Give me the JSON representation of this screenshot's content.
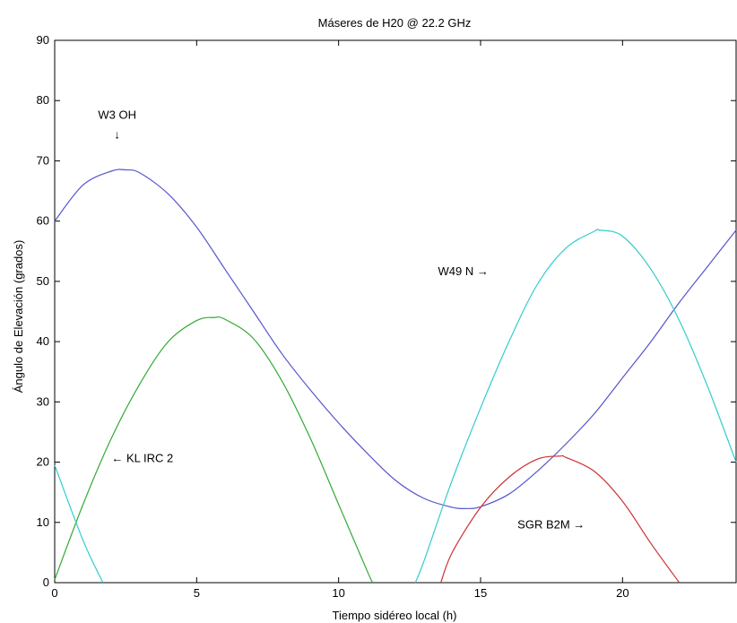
{
  "chart_data": {
    "type": "line",
    "title": "Máseres de H20 @ 22.2 GHz",
    "xlabel": "Tiempo sidéreo local (h)",
    "ylabel": "Ángulo de Elevación (grados)",
    "xlim": [
      0,
      24
    ],
    "ylim": [
      0,
      90
    ],
    "xticks": [
      0,
      5,
      10,
      15,
      20
    ],
    "yticks": [
      0,
      10,
      20,
      30,
      40,
      50,
      60,
      70,
      80,
      90
    ],
    "grid": false,
    "series": [
      {
        "name": "W3 OH",
        "color": "#5555cc",
        "x": [
          0,
          1,
          2,
          2.5,
          3,
          4,
          5,
          6,
          7,
          8,
          9,
          10,
          11,
          12,
          13,
          14,
          14.5,
          15,
          16,
          17,
          18,
          19,
          20,
          21,
          22,
          23,
          24
        ],
        "y": [
          60,
          66,
          68.3,
          68.5,
          68,
          64.5,
          59,
          52,
          45,
          38,
          32,
          26.5,
          21.5,
          17,
          14,
          12.5,
          12.3,
          12.6,
          14.7,
          18.5,
          23,
          28,
          34,
          40,
          46.5,
          52.5,
          58.5
        ]
      },
      {
        "name": "KL IRC 2",
        "color": "#33aa33",
        "x": [
          0,
          1,
          2,
          3,
          4,
          5,
          5.6,
          6,
          7,
          8,
          9,
          10,
          11,
          11.2
        ],
        "y": [
          0.5,
          13,
          24,
          33,
          40,
          43.5,
          44,
          43.7,
          40.5,
          33.5,
          24,
          13,
          2,
          0
        ]
      },
      {
        "name": "W49 N",
        "color": "#33cccc",
        "x": [
          0,
          1,
          1.7,
          12.7,
          13,
          14,
          15,
          16,
          17,
          18,
          19,
          19.2,
          20,
          21,
          22,
          23,
          24
        ],
        "y": [
          19.5,
          7,
          0,
          0,
          3.5,
          17,
          29,
          40,
          49.5,
          55.5,
          58.3,
          58.5,
          57.5,
          52,
          43.5,
          32.5,
          20
        ]
      },
      {
        "name": "SGR B2M",
        "color": "#cc3333",
        "x": [
          13.6,
          14,
          15,
          16,
          17,
          17.8,
          18,
          19,
          20,
          21,
          22
        ],
        "y": [
          0,
          5,
          12.5,
          17.5,
          20.5,
          21,
          20.8,
          18.5,
          13.5,
          6.5,
          0
        ]
      }
    ],
    "annotations": [
      {
        "text": "W3 OH",
        "arrow": "↓",
        "x": 2.2,
        "y": 77
      },
      {
        "text": "← KL IRC 2",
        "x": 2.0,
        "y": 20
      },
      {
        "text": "W49 N →",
        "x": 13.5,
        "y": 51
      },
      {
        "text": "SGR B2M →",
        "x": 16.3,
        "y": 9
      }
    ]
  }
}
